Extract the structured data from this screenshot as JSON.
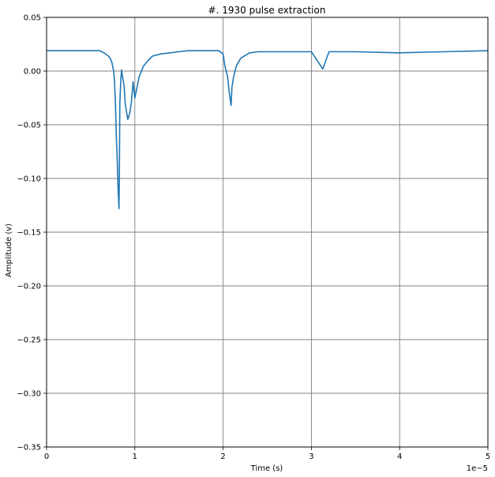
{
  "chart_data": {
    "type": "line",
    "title": "#. 1930 pulse extraction",
    "xlabel": "Time (s)",
    "ylabel": "Amplitude (v)",
    "x_scale_label": "1e−5",
    "xlim": [
      0,
      5
    ],
    "ylim": [
      -0.35,
      0.05
    ],
    "x_ticks": [
      0,
      1,
      2,
      3,
      4,
      5
    ],
    "x_tick_labels": [
      "0",
      "1",
      "2",
      "3",
      "4",
      "5"
    ],
    "y_ticks": [
      0.05,
      0.0,
      -0.05,
      -0.1,
      -0.15,
      -0.2,
      -0.25,
      -0.3,
      -0.35
    ],
    "y_tick_labels": [
      "0.05",
      "0.00",
      "−0.05",
      "−0.10",
      "−0.15",
      "−0.20",
      "−0.25",
      "−0.30",
      "−0.35"
    ],
    "grid": true,
    "grid_color": "#808080",
    "line_color": "#1f77b4",
    "series": [
      {
        "name": "",
        "x": [
          0,
          0.5,
          0.6,
          0.65,
          0.7,
          0.72,
          0.74,
          0.76,
          0.77,
          0.78,
          0.79,
          0.8,
          0.81,
          0.82,
          0.825,
          0.83,
          0.84,
          0.85,
          0.86,
          0.87,
          0.88,
          0.89,
          0.9,
          0.92,
          0.94,
          0.96,
          0.98,
          1.0,
          1.05,
          1.1,
          1.15,
          1.2,
          1.3,
          1.4,
          1.5,
          1.6,
          1.8,
          1.95,
          2.0,
          2.02,
          2.05,
          2.07,
          2.09,
          2.1,
          2.12,
          2.15,
          2.2,
          2.3,
          2.4,
          2.6,
          2.8,
          3.0,
          3.13,
          3.2,
          3.5,
          4.0,
          4.5,
          5.0
        ],
        "y": [
          0.019,
          0.019,
          0.019,
          0.017,
          0.014,
          0.012,
          0.008,
          0.0,
          -0.01,
          -0.03,
          -0.06,
          -0.08,
          -0.11,
          -0.128,
          -0.095,
          -0.03,
          -0.01,
          0.001,
          -0.005,
          -0.01,
          -0.015,
          -0.03,
          -0.035,
          -0.045,
          -0.04,
          -0.03,
          -0.01,
          -0.025,
          -0.005,
          0.005,
          0.01,
          0.014,
          0.016,
          0.017,
          0.018,
          0.019,
          0.019,
          0.019,
          0.016,
          0.005,
          -0.005,
          -0.02,
          -0.032,
          -0.015,
          -0.005,
          0.005,
          0.012,
          0.017,
          0.018,
          0.018,
          0.018,
          0.018,
          0.002,
          0.018,
          0.018,
          0.017,
          0.018,
          0.019
        ]
      }
    ]
  }
}
